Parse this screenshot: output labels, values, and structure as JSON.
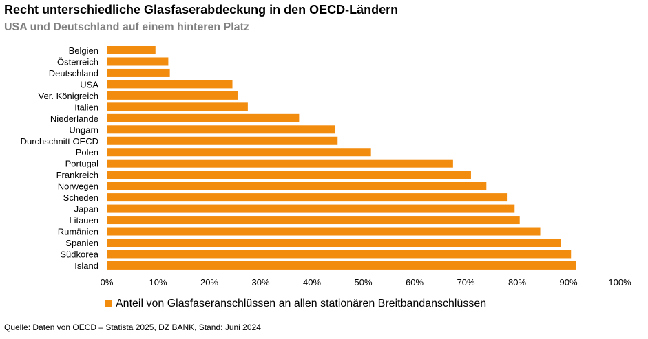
{
  "title": "Recht unterschiedliche Glasfaserabdeckung in den OECD-Ländern",
  "subtitle": "USA und Deutschland auf einem hinteren Platz",
  "source": "Quelle: Daten von OECD – Statista 2025, DZ BANK, Stand: Juni 2024",
  "colors": {
    "bar": "#F28C0F"
  },
  "chart_data": {
    "type": "bar",
    "orientation": "horizontal",
    "categories": [
      "Belgien",
      "Österreich",
      "Deutschland",
      "USA",
      "Ver. Königreich",
      "Italien",
      "Niederlande",
      "Ungarn",
      "Durchschnitt OECD",
      "Polen",
      "Portugal",
      "Frankreich",
      "Norwegen",
      "Scheden",
      "Japan",
      "Litauen",
      "Rumänien",
      "Spanien",
      "Südkorea",
      "Island"
    ],
    "series": [
      {
        "name": "Anteil von Glasfaseranschlüssen an allen stationären Breitbandanschlüssen",
        "values": [
          9.5,
          12,
          12.3,
          24.5,
          25.5,
          27.5,
          37.5,
          44.5,
          45,
          51.5,
          67.5,
          71,
          74,
          78,
          79.5,
          80.5,
          84.5,
          88.5,
          90.5,
          91.5
        ]
      }
    ],
    "xlim": [
      0,
      100
    ],
    "xticks": [
      "0%",
      "10%",
      "20%",
      "30%",
      "40%",
      "50%",
      "60%",
      "70%",
      "80%",
      "90%",
      "100%"
    ],
    "grid": false,
    "legend": "bottom-left"
  }
}
